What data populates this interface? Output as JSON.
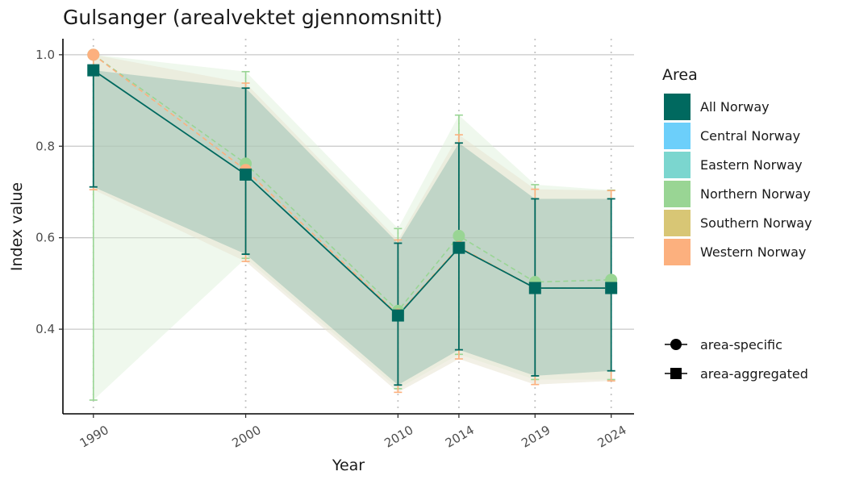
{
  "chart_data": {
    "type": "line",
    "title": "Gulsanger (arealvektet gjennomsnitt)",
    "xlabel": "Year",
    "ylabel": "Index value",
    "x": [
      1990,
      2000,
      2010,
      2014,
      2019,
      2024
    ],
    "x_tick_labels": [
      "1990",
      "2000",
      "2010",
      "2014",
      "2019",
      "2024"
    ],
    "y_ticks": [
      0.4,
      0.6,
      0.8,
      1.0
    ],
    "y_tick_labels": [
      "0.4",
      "0.6",
      "0.8",
      "1.0"
    ],
    "ylim": [
      0.215,
      1.035
    ],
    "grid": "horizontal major lines; dotted vertical lines at data years",
    "legend_title": "Area",
    "legend_position": "right",
    "area_legend": [
      {
        "name": "All Norway",
        "color": "#00695f"
      },
      {
        "name": "Central Norway",
        "color": "#6ccffa"
      },
      {
        "name": "Eastern Norway",
        "color": "#7bd6cf"
      },
      {
        "name": "Northern Norway",
        "color": "#99d594"
      },
      {
        "name": "Southern Norway",
        "color": "#d8c675"
      },
      {
        "name": "Western Norway",
        "color": "#fcb07e"
      }
    ],
    "shape_legend": [
      {
        "label": "area-specific",
        "shape": "circle"
      },
      {
        "label": "area-aggregated",
        "shape": "square"
      }
    ],
    "series": [
      {
        "name": "Northern Norway",
        "kind": "area-specific",
        "color": "#99d594",
        "values": [
          1.0,
          0.762,
          0.44,
          0.604,
          0.503,
          0.508
        ],
        "lower": [
          0.245,
          0.555,
          0.27,
          0.345,
          0.29,
          0.29
        ],
        "upper": [
          1.0,
          0.963,
          0.62,
          0.868,
          0.716,
          0.704
        ]
      },
      {
        "name": "Western Norway",
        "kind": "area-specific",
        "color": "#fcb07e",
        "values": [
          1.0,
          0.748,
          0.432,
          0.58,
          0.49,
          0.49
        ],
        "lower": [
          0.705,
          0.548,
          0.262,
          0.335,
          0.279,
          0.287
        ],
        "upper": [
          1.0,
          0.938,
          0.595,
          0.825,
          0.706,
          0.703
        ]
      },
      {
        "name": "All Norway",
        "kind": "area-aggregated",
        "color": "#00695f",
        "values": [
          0.966,
          0.738,
          0.43,
          0.578,
          0.49,
          0.49
        ],
        "lower": [
          0.711,
          0.564,
          0.278,
          0.355,
          0.298,
          0.309
        ],
        "upper": [
          0.966,
          0.927,
          0.588,
          0.807,
          0.685,
          0.685
        ]
      }
    ]
  }
}
